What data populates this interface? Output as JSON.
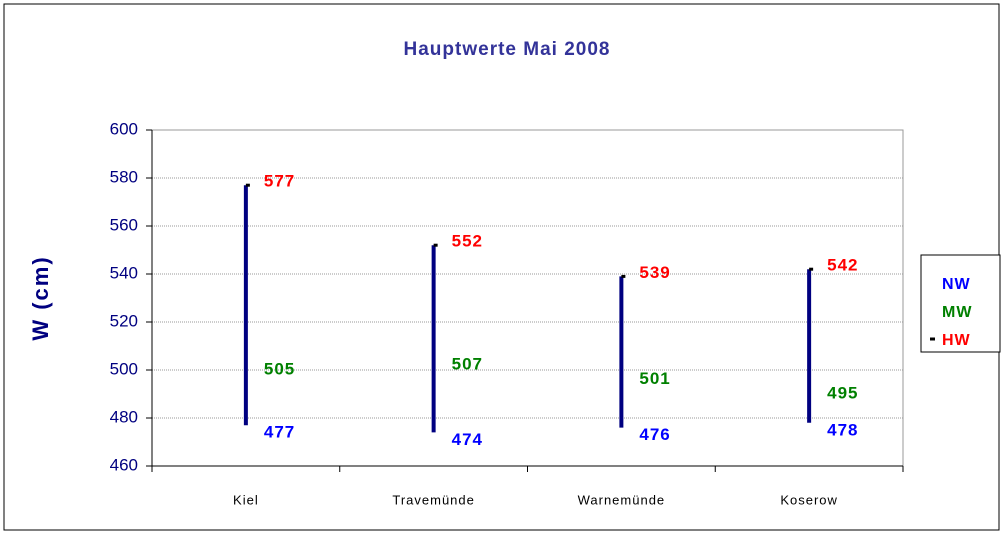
{
  "chart_data": {
    "type": "hilo",
    "title": "Hauptwerte Mai 2008",
    "y_label": "W (cm)",
    "categories": [
      "Kiel",
      "Travemünde",
      "Warnemünde",
      "Koserow"
    ],
    "series": [
      {
        "name": "NW",
        "color": "#0000ff",
        "values": [
          477,
          474,
          476,
          478
        ]
      },
      {
        "name": "MW",
        "color": "#008000",
        "values": [
          505,
          507,
          501,
          495
        ]
      },
      {
        "name": "HW",
        "color": "#ff0000",
        "values": [
          577,
          552,
          539,
          542
        ]
      }
    ],
    "line_color": "#000080",
    "ylim": [
      460,
      600
    ],
    "yticks": [
      460,
      480,
      500,
      520,
      540,
      560,
      580,
      600
    ],
    "grid": true,
    "legend": "right"
  }
}
